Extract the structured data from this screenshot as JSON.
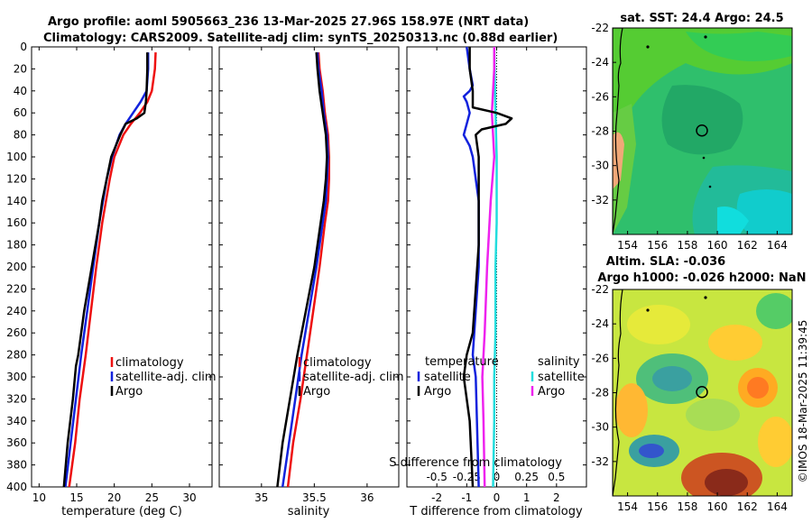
{
  "header": {
    "line1": "Argo profile: aoml 5905663_236 13-Mar-2025 27.96S 158.97E (NRT data)",
    "line2": "Climatology: CARS2009. Satellite-adj clim: synTS_20250313.nc (0.88d earlier)"
  },
  "depth_ticks": [
    0,
    20,
    40,
    60,
    80,
    100,
    120,
    140,
    160,
    180,
    200,
    220,
    240,
    260,
    280,
    300,
    320,
    340,
    360,
    380,
    400
  ],
  "colors": {
    "climatology": "#ee1111",
    "satellite": "#1122dd",
    "argo": "#000000",
    "s_satellite": "#22dddd",
    "s_argo": "#ee22ee"
  },
  "chart_data": [
    {
      "type": "line",
      "name": "temperature-profile",
      "xlabel": "temperature (deg C)",
      "ylabel": "depth",
      "xlim": [
        9,
        33
      ],
      "ylim": [
        0,
        400
      ],
      "xticks": [
        10,
        15,
        20,
        25,
        30
      ],
      "legend": [
        "climatology",
        "satellite-adj. clim",
        "Argo"
      ],
      "legend_position": "lower-right",
      "series": [
        {
          "name": "climatology",
          "depth": [
            5,
            20,
            40,
            50,
            60,
            70,
            80,
            100,
            120,
            140,
            160,
            200,
            240,
            280,
            320,
            360,
            400
          ],
          "values": [
            25.5,
            25.4,
            25.0,
            24.4,
            23.4,
            22.2,
            21.2,
            20.0,
            19.4,
            18.9,
            18.4,
            17.6,
            16.9,
            16.2,
            15.4,
            14.8,
            14.0
          ]
        },
        {
          "name": "satellite-adj. clim",
          "depth": [
            5,
            20,
            40,
            50,
            60,
            70,
            80,
            100,
            120,
            140,
            160,
            200,
            240,
            280,
            320,
            360,
            400
          ],
          "values": [
            24.5,
            24.5,
            24.3,
            23.5,
            22.5,
            21.5,
            20.7,
            19.7,
            19.0,
            18.5,
            18.0,
            17.2,
            16.4,
            15.6,
            14.9,
            14.2,
            13.5
          ]
        },
        {
          "name": "Argo",
          "depth": [
            5,
            20,
            40,
            50,
            60,
            65,
            70,
            80,
            100,
            120,
            140,
            160,
            200,
            240,
            280,
            290,
            320,
            360,
            400
          ],
          "values": [
            24.4,
            24.4,
            24.3,
            24.2,
            24.0,
            23.0,
            21.5,
            20.8,
            19.6,
            19.0,
            18.4,
            18.0,
            17.0,
            16.0,
            15.2,
            14.9,
            14.5,
            13.8,
            13.3
          ]
        }
      ]
    },
    {
      "type": "line",
      "name": "salinity-profile",
      "xlabel": "salinity",
      "ylabel": "depth",
      "xlim": [
        34.6,
        36.3
      ],
      "ylim": [
        0,
        400
      ],
      "xticks": [
        35,
        35.5,
        36
      ],
      "legend": [
        "climatology",
        "satellite-adj. clim",
        "Argo"
      ],
      "legend_position": "lower-right",
      "series": [
        {
          "name": "climatology",
          "depth": [
            5,
            20,
            40,
            60,
            80,
            100,
            120,
            140,
            160,
            200,
            240,
            280,
            320,
            360,
            400
          ],
          "values": [
            35.54,
            35.55,
            35.58,
            35.6,
            35.63,
            35.64,
            35.64,
            35.63,
            35.6,
            35.55,
            35.49,
            35.43,
            35.37,
            35.3,
            35.25
          ]
        },
        {
          "name": "satellite-adj. clim",
          "depth": [
            5,
            20,
            40,
            60,
            80,
            100,
            120,
            140,
            160,
            200,
            240,
            280,
            320,
            360,
            400
          ],
          "values": [
            35.53,
            35.54,
            35.57,
            35.59,
            35.62,
            35.63,
            35.62,
            35.61,
            35.58,
            35.52,
            35.45,
            35.38,
            35.32,
            35.26,
            35.2
          ]
        },
        {
          "name": "Argo",
          "depth": [
            5,
            20,
            40,
            60,
            80,
            100,
            120,
            140,
            160,
            200,
            240,
            280,
            320,
            360,
            400
          ],
          "values": [
            35.52,
            35.53,
            35.55,
            35.58,
            35.61,
            35.62,
            35.61,
            35.59,
            35.56,
            35.5,
            35.42,
            35.34,
            35.27,
            35.2,
            35.15
          ]
        }
      ]
    },
    {
      "type": "line",
      "name": "difference-from-climatology",
      "xlabel": "T difference from climatology",
      "x2label": "S difference from climatology",
      "ylabel": "depth",
      "xlim": [
        -3,
        3
      ],
      "x2lim": [
        -0.75,
        0.75
      ],
      "ylim": [
        0,
        400
      ],
      "xticks": [
        -2,
        -1,
        0,
        1,
        2
      ],
      "x2ticks": [
        -0.5,
        -0.25,
        0,
        0.25,
        0.5
      ],
      "legend_temperature_title": "temperature",
      "legend_salinity_title": "salinity",
      "legend_temperature": [
        "satellite",
        "Argo"
      ],
      "legend_salinity": [
        "satellite",
        "Argo"
      ],
      "series": [
        {
          "name": "T satellite",
          "depth": [
            0,
            20,
            35,
            40,
            45,
            50,
            60,
            70,
            80,
            90,
            100,
            140,
            200,
            240,
            280,
            300,
            400
          ],
          "values": [
            -1.0,
            -0.9,
            -0.8,
            -0.9,
            -1.1,
            -1.0,
            -0.9,
            -1.0,
            -1.1,
            -0.9,
            -0.8,
            -0.6,
            -0.6,
            -0.7,
            -0.8,
            -0.7,
            -0.6
          ]
        },
        {
          "name": "T Argo",
          "depth": [
            0,
            20,
            40,
            55,
            60,
            65,
            70,
            75,
            80,
            100,
            140,
            180,
            220,
            260,
            280,
            300,
            340,
            400
          ],
          "values": [
            -0.9,
            -0.9,
            -0.8,
            -0.8,
            0.0,
            0.5,
            0.3,
            -0.5,
            -0.7,
            -0.6,
            -0.6,
            -0.6,
            -0.7,
            -0.8,
            -1.0,
            -1.1,
            -0.9,
            -0.8
          ]
        },
        {
          "name": "S satellite",
          "depth": [
            0,
            60,
            100,
            160,
            200,
            260,
            300,
            340,
            400
          ],
          "values": [
            -0.02,
            -0.01,
            0.0,
            0.0,
            -0.01,
            -0.01,
            -0.02,
            -0.02,
            -0.03
          ]
        },
        {
          "name": "S Argo",
          "depth": [
            0,
            20,
            40,
            60,
            80,
            100,
            140,
            200,
            260,
            300,
            340,
            400
          ],
          "values": [
            -0.02,
            -0.02,
            -0.03,
            -0.04,
            -0.03,
            -0.02,
            -0.05,
            -0.08,
            -0.1,
            -0.12,
            -0.11,
            -0.1
          ]
        }
      ]
    },
    {
      "type": "heatmap",
      "name": "sst-map",
      "title": "sat. SST: 24.4 Argo: 24.5",
      "xticks": [
        154,
        156,
        158,
        160,
        162,
        164
      ],
      "yticks": [
        -22,
        -24,
        -26,
        -28,
        -30,
        -32
      ],
      "xlim": [
        153,
        165
      ],
      "ylim": [
        -34,
        -22
      ],
      "argo_position": {
        "lon": 158.97,
        "lat": -27.96
      }
    },
    {
      "type": "heatmap",
      "name": "sla-map",
      "title": "Altim. SLA: -0.036",
      "subtitle": "Argo h1000: -0.026 h2000: NaN",
      "xticks": [
        154,
        156,
        158,
        160,
        162,
        164
      ],
      "yticks": [
        -22,
        -24,
        -26,
        -28,
        -30,
        -32
      ],
      "xlim": [
        153,
        165
      ],
      "ylim": [
        -34,
        -22
      ],
      "argo_position": {
        "lon": 158.97,
        "lat": -27.96
      }
    }
  ],
  "stamp": "©IMOS 18-Mar-2025 11:39:45"
}
